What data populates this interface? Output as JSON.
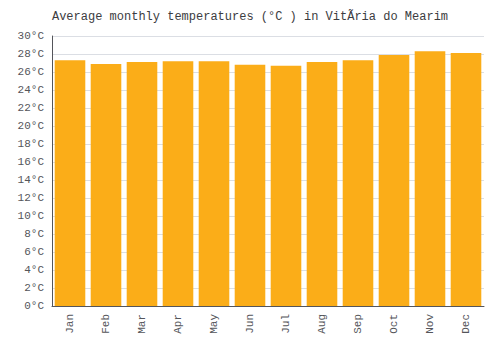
{
  "chart_data": {
    "type": "bar",
    "title": "Average monthly temperatures (°C ) in VitÃ­ria do Mearim",
    "categories": [
      "Jan",
      "Feb",
      "Mar",
      "Apr",
      "May",
      "Jun",
      "Jul",
      "Aug",
      "Sep",
      "Oct",
      "Nov",
      "Dec"
    ],
    "values": [
      27.3,
      26.9,
      27.1,
      27.2,
      27.2,
      26.8,
      26.7,
      27.1,
      27.3,
      27.9,
      28.3,
      28.1
    ],
    "color": "#FBAD18",
    "ylim": [
      0,
      30
    ],
    "yticks": [
      {
        "value": 0,
        "label": "0°C"
      },
      {
        "value": 2,
        "label": "2°C"
      },
      {
        "value": 4,
        "label": "4°C"
      },
      {
        "value": 6,
        "label": "6°C"
      },
      {
        "value": 8,
        "label": "8°C"
      },
      {
        "value": 10,
        "label": "10°C"
      },
      {
        "value": 12,
        "label": "12°C"
      },
      {
        "value": 14,
        "label": "14°C"
      },
      {
        "value": 16,
        "label": "16°C"
      },
      {
        "value": 18,
        "label": "18°C"
      },
      {
        "value": 20,
        "label": "20°C"
      },
      {
        "value": 22,
        "label": "22°C"
      },
      {
        "value": 24,
        "label": "24°C"
      },
      {
        "value": 26,
        "label": "26°C"
      },
      {
        "value": 28,
        "label": "28°C"
      },
      {
        "value": 30,
        "label": "30°C"
      }
    ],
    "grid": true
  }
}
